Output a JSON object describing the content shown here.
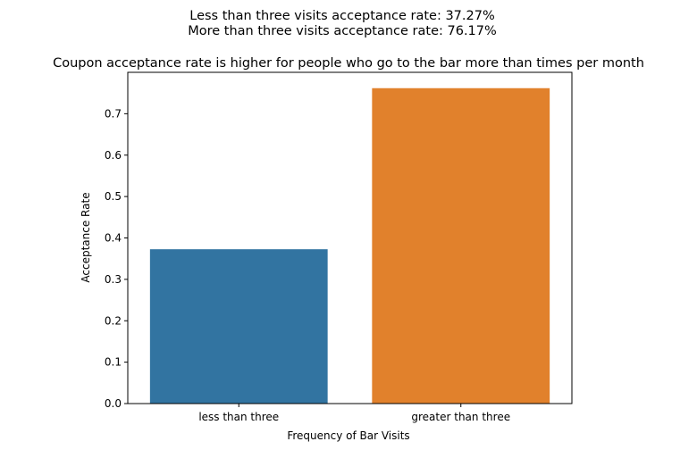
{
  "chart_data": {
    "type": "bar",
    "suptitle_lines": [
      "Less than three visits acceptance rate:  37.27%",
      "More than three visits acceptance rate:  76.17%"
    ],
    "title": "Coupon acceptance rate is higher for people who go to the bar more than times per month",
    "xlabel": "Frequency of Bar Visits",
    "ylabel": "Acceptance Rate",
    "categories": [
      "less than three",
      "greater than three"
    ],
    "values": [
      0.3727,
      0.7617
    ],
    "colors": [
      "#3274a1",
      "#e1812c"
    ],
    "ylim": [
      0,
      0.8
    ],
    "yticks": [
      "0.0",
      "0.1",
      "0.2",
      "0.3",
      "0.4",
      "0.5",
      "0.6",
      "0.7"
    ],
    "grid": false
  }
}
